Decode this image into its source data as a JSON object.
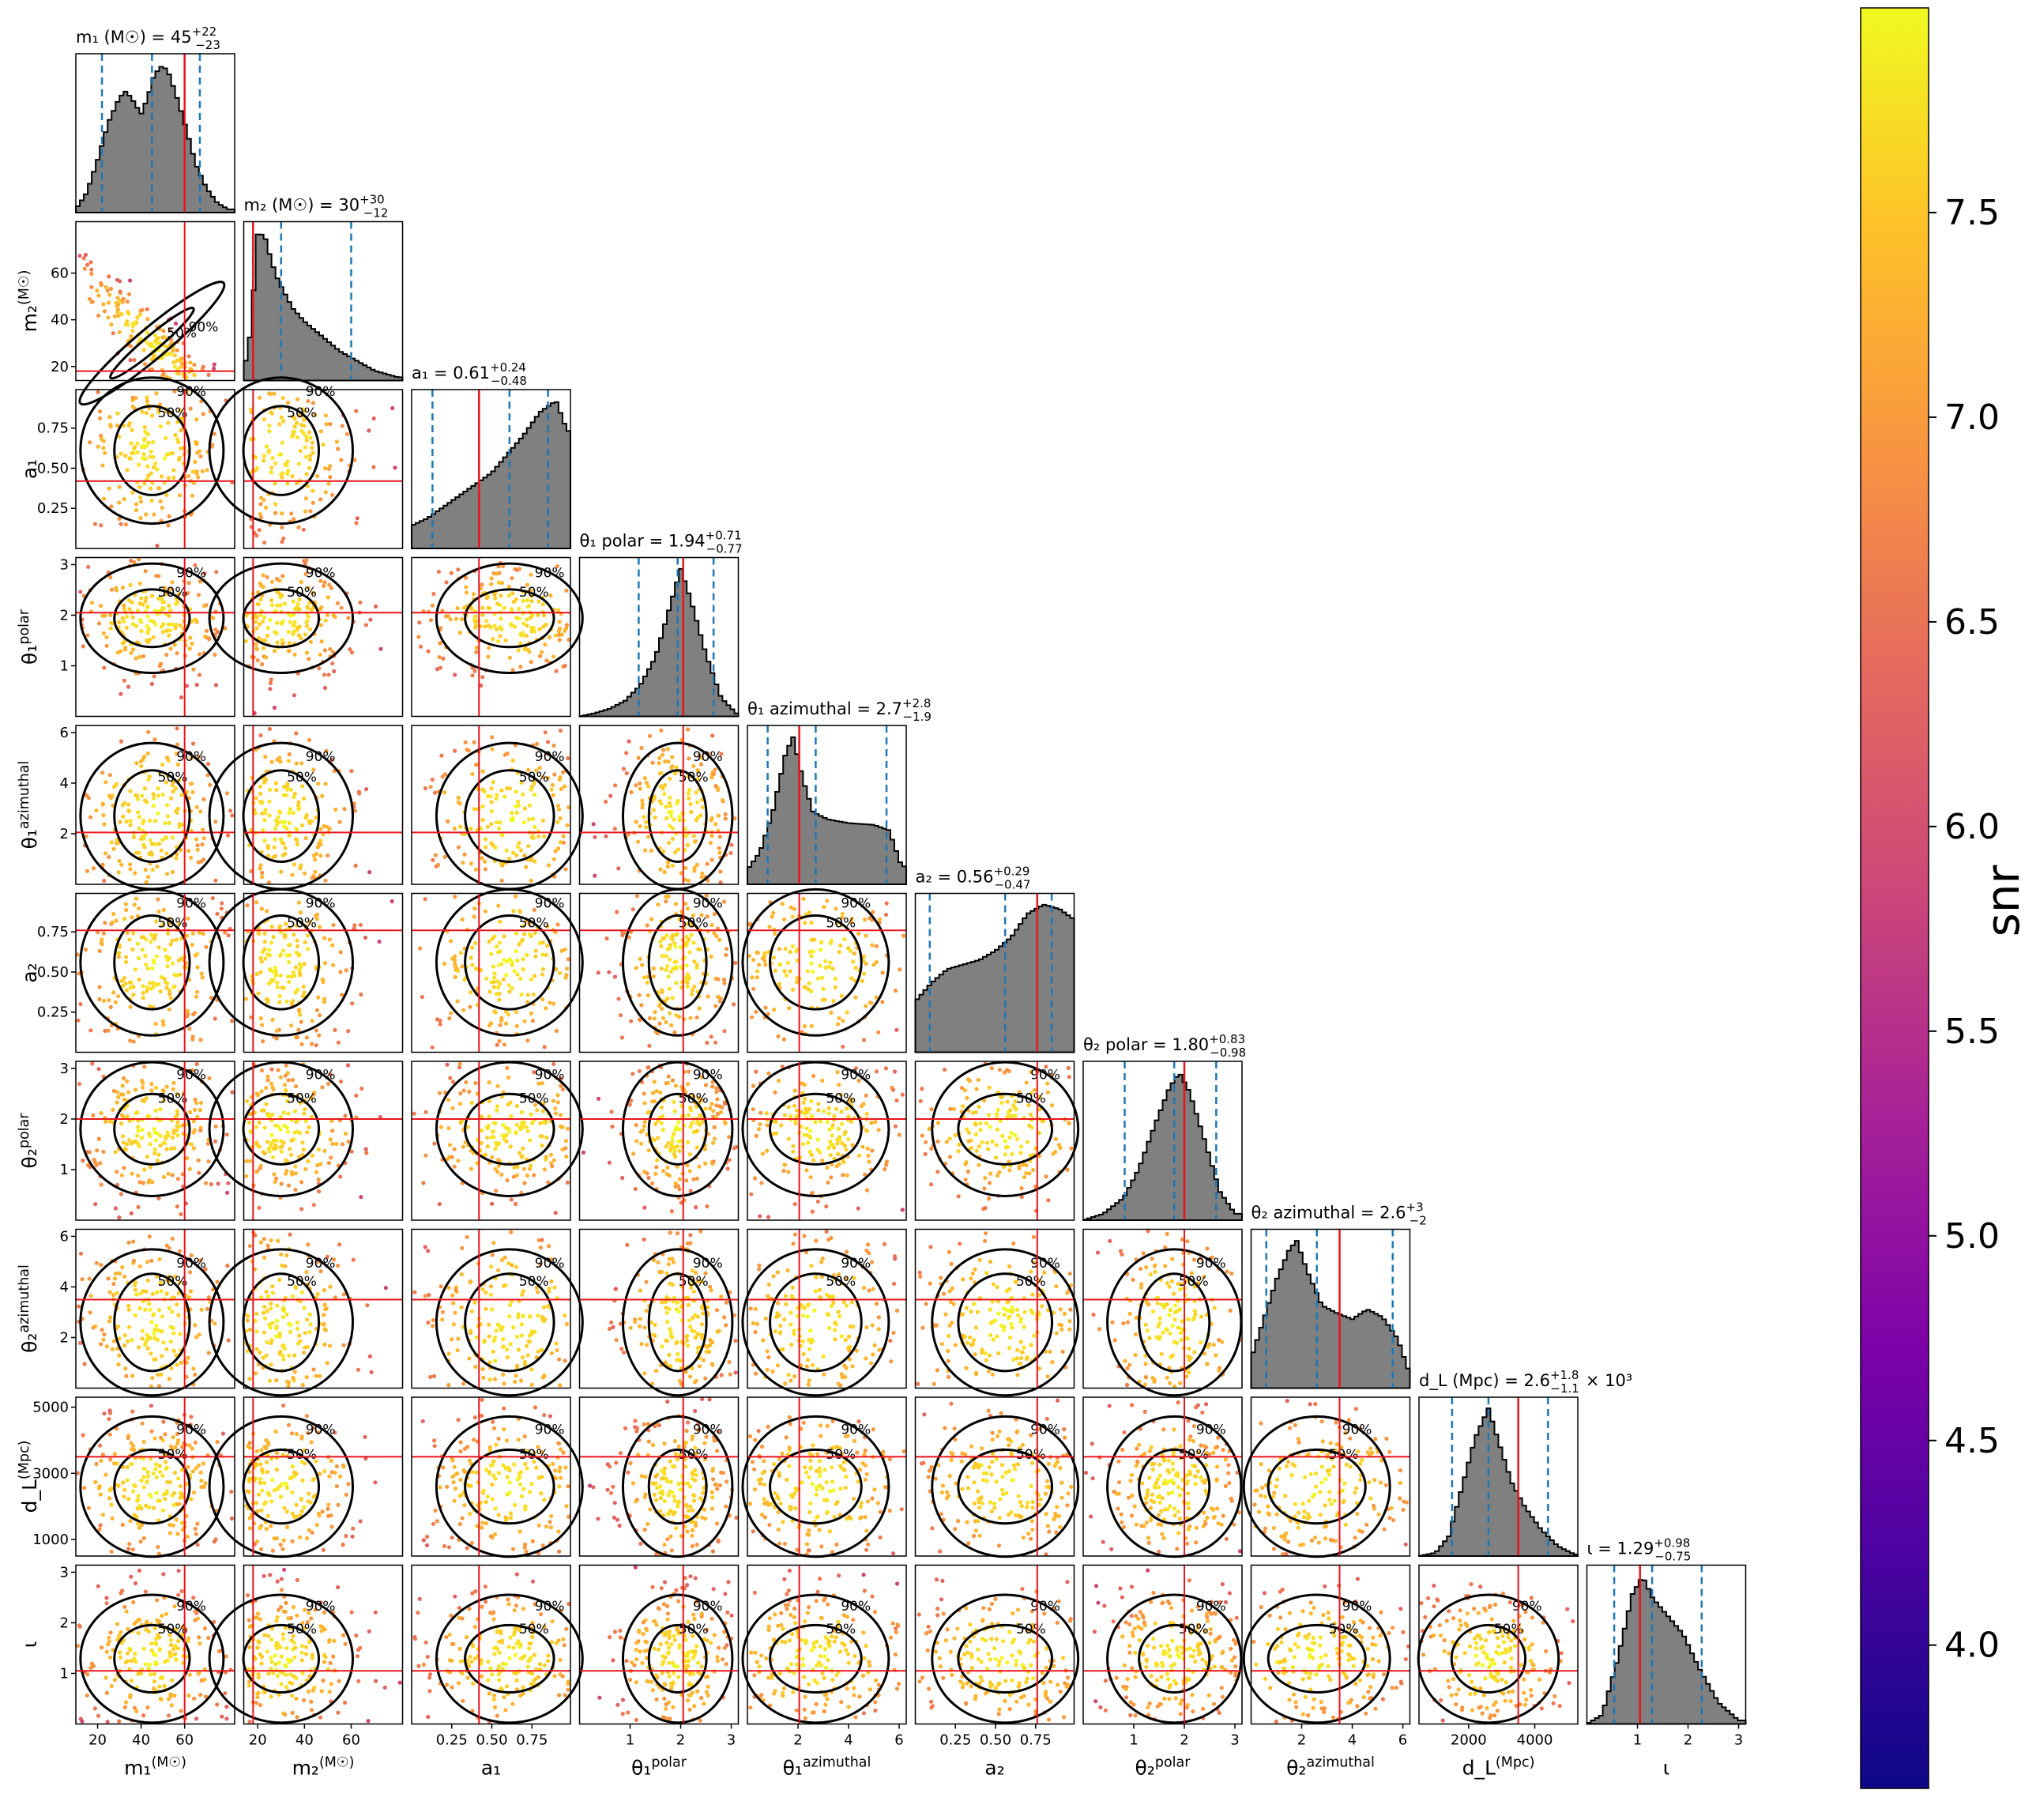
{
  "chart_data": {
    "type": "corner",
    "parameters": [
      {
        "key": "m1",
        "label": "m₁ (M☉)",
        "range": [
          10,
          83
        ],
        "ticks": [
          20,
          40,
          60
        ],
        "tick_labels": [
          "20",
          "40",
          "60"
        ],
        "median": 45,
        "lower": 22,
        "upper": 67,
        "true": 60,
        "title": "m₁ (M☉) = 45",
        "title_sup": "+22",
        "title_sub": "−23",
        "title_suffix": "",
        "hist_shape": [
          [
            10,
            0.02
          ],
          [
            15,
            0.12
          ],
          [
            20,
            0.32
          ],
          [
            25,
            0.55
          ],
          [
            30,
            0.7
          ],
          [
            33,
            0.74
          ],
          [
            36,
            0.69
          ],
          [
            40,
            0.6
          ],
          [
            43,
            0.7
          ],
          [
            46,
            0.84
          ],
          [
            50,
            0.9
          ],
          [
            53,
            0.84
          ],
          [
            57,
            0.68
          ],
          [
            61,
            0.5
          ],
          [
            65,
            0.3
          ],
          [
            70,
            0.15
          ],
          [
            75,
            0.06
          ],
          [
            80,
            0.02
          ]
        ]
      },
      {
        "key": "m2",
        "label": "m₂ (M☉)",
        "range": [
          14,
          82
        ],
        "ticks": [
          20,
          40,
          60
        ],
        "tick_labels": [
          "20",
          "40",
          "60"
        ],
        "median": 30,
        "lower": 18,
        "upper": 60,
        "true": 18,
        "title": "m₂ (M☉) = 30",
        "title_sup": "+30",
        "title_sub": "−12",
        "title_suffix": "",
        "hist_shape": [
          [
            14,
            0.05
          ],
          [
            17,
            0.3
          ],
          [
            20,
            0.9
          ],
          [
            23,
            0.88
          ],
          [
            26,
            0.72
          ],
          [
            29,
            0.6
          ],
          [
            32,
            0.52
          ],
          [
            35,
            0.44
          ],
          [
            40,
            0.36
          ],
          [
            45,
            0.3
          ],
          [
            50,
            0.24
          ],
          [
            55,
            0.18
          ],
          [
            60,
            0.14
          ],
          [
            65,
            0.1
          ],
          [
            70,
            0.06
          ],
          [
            75,
            0.04
          ],
          [
            80,
            0.02
          ]
        ]
      },
      {
        "key": "a1",
        "label": "a₁",
        "range": [
          0.0,
          0.99
        ],
        "ticks": [
          0.25,
          0.5,
          0.75
        ],
        "tick_labels": [
          "0.25",
          "0.50",
          "0.75"
        ],
        "median": 0.61,
        "lower": 0.13,
        "upper": 0.85,
        "true": 0.42,
        "title": "a₁ = 0.61",
        "title_sup": "+0.24",
        "title_sub": "−0.48",
        "title_suffix": "",
        "hist_shape": [
          [
            0.0,
            0.12
          ],
          [
            0.1,
            0.16
          ],
          [
            0.2,
            0.22
          ],
          [
            0.3,
            0.28
          ],
          [
            0.4,
            0.34
          ],
          [
            0.5,
            0.4
          ],
          [
            0.6,
            0.5
          ],
          [
            0.7,
            0.6
          ],
          [
            0.8,
            0.72
          ],
          [
            0.9,
            0.78
          ],
          [
            0.97,
            0.62
          ]
        ]
      },
      {
        "key": "theta1",
        "label": "θ₁ polar",
        "range": [
          0,
          3.14
        ],
        "ticks": [
          1,
          2,
          3
        ],
        "tick_labels": [
          "1",
          "2",
          "3"
        ],
        "median": 1.94,
        "lower": 1.17,
        "upper": 2.65,
        "true": 2.05,
        "title": "θ₁ polar = 1.94",
        "title_sup": "+0.71",
        "title_sub": "−0.77",
        "title_suffix": "",
        "hist_shape": [
          [
            0.0,
            0.0
          ],
          [
            0.3,
            0.02
          ],
          [
            0.6,
            0.05
          ],
          [
            0.9,
            0.1
          ],
          [
            1.2,
            0.2
          ],
          [
            1.5,
            0.38
          ],
          [
            1.8,
            0.72
          ],
          [
            2.0,
            0.95
          ],
          [
            2.2,
            0.75
          ],
          [
            2.5,
            0.4
          ],
          [
            2.8,
            0.12
          ],
          [
            3.1,
            0.02
          ]
        ]
      },
      {
        "key": "phi1",
        "label": "θ₁ azimuthal",
        "range": [
          0,
          6.28
        ],
        "ticks": [
          2,
          4,
          6
        ],
        "tick_labels": [
          "2",
          "4",
          "6"
        ],
        "median": 2.7,
        "lower": 0.8,
        "upper": 5.5,
        "true": 2.05,
        "title": "θ₁ azimuthal = 2.7",
        "title_sup": "+2.8",
        "title_sub": "−1.9",
        "title_suffix": "",
        "hist_shape": [
          [
            0.0,
            0.08
          ],
          [
            0.5,
            0.18
          ],
          [
            1.0,
            0.4
          ],
          [
            1.5,
            0.72
          ],
          [
            1.8,
            0.82
          ],
          [
            2.2,
            0.58
          ],
          [
            2.6,
            0.4
          ],
          [
            3.2,
            0.36
          ],
          [
            4.0,
            0.34
          ],
          [
            5.0,
            0.33
          ],
          [
            5.6,
            0.3
          ],
          [
            6.1,
            0.1
          ]
        ]
      },
      {
        "key": "a2",
        "label": "a₂",
        "range": [
          0.0,
          0.99
        ],
        "ticks": [
          0.25,
          0.5,
          0.75
        ],
        "tick_labels": [
          "0.25",
          "0.50",
          "0.75"
        ],
        "median": 0.56,
        "lower": 0.09,
        "upper": 0.85,
        "true": 0.76,
        "title": "a₂ = 0.56",
        "title_sup": "+0.29",
        "title_sub": "−0.47",
        "title_suffix": "",
        "hist_shape": [
          [
            0.0,
            0.22
          ],
          [
            0.1,
            0.3
          ],
          [
            0.2,
            0.36
          ],
          [
            0.3,
            0.38
          ],
          [
            0.4,
            0.4
          ],
          [
            0.5,
            0.44
          ],
          [
            0.6,
            0.5
          ],
          [
            0.7,
            0.6
          ],
          [
            0.8,
            0.64
          ],
          [
            0.9,
            0.62
          ],
          [
            0.98,
            0.58
          ]
        ]
      },
      {
        "key": "theta2",
        "label": "θ₂ polar",
        "range": [
          0,
          3.14
        ],
        "ticks": [
          1,
          2,
          3
        ],
        "tick_labels": [
          "1",
          "2",
          "3"
        ],
        "median": 1.8,
        "lower": 0.82,
        "upper": 2.63,
        "true": 2.0,
        "title": "θ₂ polar = 1.80",
        "title_sup": "+0.83",
        "title_sub": "−0.98",
        "title_suffix": "",
        "hist_shape": [
          [
            0.0,
            0.0
          ],
          [
            0.4,
            0.04
          ],
          [
            0.8,
            0.14
          ],
          [
            1.1,
            0.32
          ],
          [
            1.4,
            0.58
          ],
          [
            1.7,
            0.82
          ],
          [
            1.9,
            0.92
          ],
          [
            2.1,
            0.8
          ],
          [
            2.4,
            0.5
          ],
          [
            2.7,
            0.18
          ],
          [
            3.0,
            0.04
          ]
        ]
      },
      {
        "key": "phi2",
        "label": "θ₂ azimuthal",
        "range": [
          0,
          6.28
        ],
        "ticks": [
          2,
          4,
          6
        ],
        "tick_labels": [
          "2",
          "4",
          "6"
        ],
        "median": 2.6,
        "lower": 0.6,
        "upper": 5.6,
        "true": 3.5,
        "title": "θ₂ azimuthal = 2.6",
        "title_sup": "+3",
        "title_sub": "−2",
        "title_suffix": "",
        "hist_shape": [
          [
            0.0,
            0.15
          ],
          [
            0.5,
            0.35
          ],
          [
            1.0,
            0.55
          ],
          [
            1.5,
            0.7
          ],
          [
            1.8,
            0.75
          ],
          [
            2.2,
            0.6
          ],
          [
            2.8,
            0.42
          ],
          [
            3.4,
            0.38
          ],
          [
            4.0,
            0.35
          ],
          [
            4.6,
            0.4
          ],
          [
            5.2,
            0.36
          ],
          [
            5.8,
            0.25
          ],
          [
            6.2,
            0.1
          ]
        ]
      },
      {
        "key": "dL",
        "label": "d_L (Mpc)",
        "range": [
          500,
          5300
        ],
        "ticks": [
          2000,
          4000
        ],
        "tick_labels": [
          "2000",
          "4000"
        ],
        "y_ticks": [
          1000,
          3000,
          5000
        ],
        "y_tick_labels": [
          "1000",
          "3000",
          "5000"
        ],
        "median": 2600,
        "lower": 1500,
        "upper": 4400,
        "true": 3500,
        "title": "d_L (Mpc) = 2.6",
        "title_sup": "+1.8",
        "title_sub": "−1.1",
        "title_suffix": "× 10³",
        "hist_shape": [
          [
            500,
            0.0
          ],
          [
            1000,
            0.02
          ],
          [
            1400,
            0.12
          ],
          [
            1800,
            0.42
          ],
          [
            2200,
            0.72
          ],
          [
            2600,
            0.9
          ],
          [
            2900,
            0.7
          ],
          [
            3300,
            0.45
          ],
          [
            3700,
            0.3
          ],
          [
            4200,
            0.16
          ],
          [
            4700,
            0.06
          ],
          [
            5200,
            0.01
          ]
        ]
      },
      {
        "key": "iota",
        "label": "ι",
        "range": [
          0,
          3.14
        ],
        "ticks": [
          1,
          2,
          3
        ],
        "tick_labels": [
          "1",
          "2",
          "3"
        ],
        "median": 1.29,
        "lower": 0.54,
        "upper": 2.27,
        "true": 1.05,
        "title": "ι = 1.29",
        "title_sup": "+0.98",
        "title_sub": "−0.75",
        "title_suffix": "",
        "hist_shape": [
          [
            0.0,
            0.0
          ],
          [
            0.3,
            0.05
          ],
          [
            0.6,
            0.35
          ],
          [
            0.9,
            0.72
          ],
          [
            1.1,
            0.82
          ],
          [
            1.3,
            0.7
          ],
          [
            1.6,
            0.6
          ],
          [
            1.9,
            0.5
          ],
          [
            2.2,
            0.32
          ],
          [
            2.6,
            0.12
          ],
          [
            3.0,
            0.02
          ]
        ]
      }
    ],
    "contour_levels": [
      "50%",
      "90%"
    ],
    "colorbar": {
      "label": "snr",
      "range": [
        3.65,
        8.0
      ],
      "ticks": [
        4.0,
        4.5,
        5.0,
        5.5,
        6.0,
        6.5,
        7.0,
        7.5
      ],
      "tick_labels": [
        "4.0",
        "4.5",
        "5.0",
        "5.5",
        "6.0",
        "6.5",
        "7.0",
        "7.5"
      ],
      "colormap": "plasma"
    },
    "colors": {
      "true_line": "#e8141c",
      "quantile_line": "#1f77b4",
      "hist_fill": "#808080",
      "contour": "#000000"
    }
  }
}
